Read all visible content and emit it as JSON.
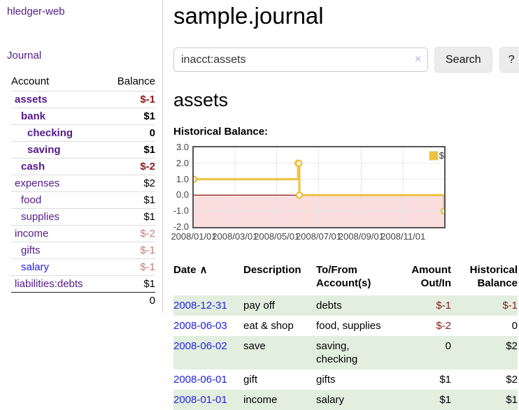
{
  "colors": {
    "link_purple": "#551A8B",
    "link_blue": "#2222E6",
    "negative_strong": "#8b1a1a",
    "negative_soft": "#c97c72",
    "row_green": "#e2efdf",
    "series_yellow": "#edc240"
  },
  "sidebar": {
    "brand": "hledger-web",
    "journal_link": "Journal",
    "col_account": "Account",
    "col_balance": "Balance",
    "accounts": [
      {
        "name": "assets",
        "depth": 1,
        "bold": true,
        "balance": "$-1",
        "neg": "strong",
        "blue": false
      },
      {
        "name": "bank",
        "depth": 2,
        "bold": true,
        "balance": "$1",
        "neg": null,
        "blue": false
      },
      {
        "name": "checking",
        "depth": 3,
        "bold": true,
        "balance": "0",
        "neg": null,
        "blue": false
      },
      {
        "name": "saving",
        "depth": 3,
        "bold": true,
        "balance": "$1",
        "neg": null,
        "blue": false
      },
      {
        "name": "cash",
        "depth": 2,
        "bold": true,
        "balance": "$-2",
        "neg": "strong",
        "blue": false
      },
      {
        "name": "expenses",
        "depth": 1,
        "bold": false,
        "balance": "$2",
        "neg": null,
        "blue": false
      },
      {
        "name": "food",
        "depth": 2,
        "bold": false,
        "balance": "$1",
        "neg": null,
        "blue": false
      },
      {
        "name": "supplies",
        "depth": 2,
        "bold": false,
        "balance": "$1",
        "neg": null,
        "blue": false
      },
      {
        "name": "income",
        "depth": 1,
        "bold": false,
        "balance": "$-2",
        "neg": "soft",
        "blue": false
      },
      {
        "name": "gifts",
        "depth": 2,
        "bold": false,
        "balance": "$-1",
        "neg": "soft",
        "blue": false
      },
      {
        "name": "salary",
        "depth": 2,
        "bold": false,
        "balance": "$-1",
        "neg": "soft",
        "blue": true
      },
      {
        "name": "liabilities:debts",
        "depth": 1,
        "bold": false,
        "balance": "$1",
        "neg": null,
        "blue": false
      }
    ],
    "total": "0"
  },
  "main": {
    "title": "sample.journal",
    "search": {
      "value": "inacct:assets",
      "clear_icon": "×",
      "search_button": "Search",
      "help_button": "?"
    },
    "account_heading": "assets",
    "chart_title": "Historical Balance:"
  },
  "chart_data": {
    "type": "line",
    "mode": "steps",
    "title": "Historical Balance of assets",
    "series": [
      {
        "name": "$",
        "color": "#edc240",
        "points": [
          [
            "2008-01-01",
            1
          ],
          [
            "2008-06-01",
            2
          ],
          [
            "2008-06-02",
            2
          ],
          [
            "2008-06-03",
            0
          ],
          [
            "2008-12-31",
            -1
          ]
        ]
      }
    ],
    "ylim": [
      -2,
      3
    ],
    "yticks": [
      3.0,
      2.0,
      1.0,
      0.0,
      -1.0,
      -2.0
    ],
    "xticks": [
      "2008/01/01",
      "2008/03/01",
      "2008/05/01",
      "2008/07/01",
      "2008/09/01",
      "2008/11/01"
    ],
    "xrange": [
      "2008-01-01",
      "2008-12-31"
    ],
    "grid": true,
    "negative_fill": "#fbdede",
    "zero_line_color": "#8b1a1a",
    "grid_color": "#e7e7e7",
    "border_color": "#545454",
    "legend": {
      "label": "$",
      "position": "top-right"
    }
  },
  "register": {
    "columns": [
      "Date",
      "Description",
      "To/From Account(s)",
      "Amount Out/In",
      "Historical Balance"
    ],
    "sort_indicator": "∧",
    "rows": [
      {
        "date": "2008-12-31",
        "description": "pay off",
        "accounts": "debts",
        "amount": "$-1",
        "amount_neg": true,
        "balance": "$-1",
        "balance_neg": true
      },
      {
        "date": "2008-06-03",
        "description": "eat & shop",
        "accounts": "food, supplies",
        "amount": "$-2",
        "amount_neg": true,
        "balance": "0",
        "balance_neg": false
      },
      {
        "date": "2008-06-02",
        "description": "save",
        "accounts": "saving, checking",
        "amount": "0",
        "amount_neg": false,
        "balance": "$2",
        "balance_neg": false
      },
      {
        "date": "2008-06-01",
        "description": "gift",
        "accounts": "gifts",
        "amount": "$1",
        "amount_neg": false,
        "balance": "$2",
        "balance_neg": false
      },
      {
        "date": "2008-01-01",
        "description": "income",
        "accounts": "salary",
        "amount": "$1",
        "amount_neg": false,
        "balance": "$1",
        "balance_neg": false
      }
    ]
  }
}
